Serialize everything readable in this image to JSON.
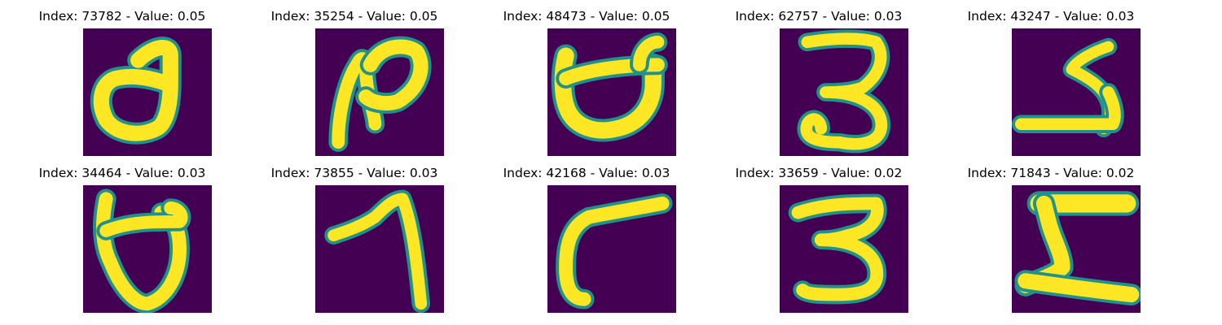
{
  "colormap": {
    "low": "#440154",
    "mid": "#21918c",
    "high": "#fde725"
  },
  "panels": [
    {
      "title": "Index: 73782 - Value: 0.05",
      "index": 73782,
      "value": 0.05,
      "description": "handwritten glyph resembling a rounded bowl with a raised right stroke"
    },
    {
      "title": "Index: 35254 - Value: 0.05",
      "index": 35254,
      "value": 0.05,
      "description": "handwritten glyph with a vertical left stroke and looping top-right hump"
    },
    {
      "title": "Index: 48473 - Value: 0.05",
      "index": 48473,
      "value": 0.05,
      "description": "handwritten glyph resembling a bowl with two upward prongs"
    },
    {
      "title": "Index: 62757 - Value: 0.03",
      "index": 62757,
      "value": 0.03,
      "description": "handwritten digit three"
    },
    {
      "title": "Index: 43247 - Value: 0.03",
      "index": 43247,
      "value": 0.03,
      "description": "handwritten glyph with a zigzag stroke ending in a long horizontal base"
    },
    {
      "title": "Index: 34464 - Value: 0.03",
      "index": 34464,
      "value": 0.03,
      "description": "handwritten glyph resembling a bowl with a vertical left stroke and a hook on the right"
    },
    {
      "title": "Index: 73855 - Value: 0.03",
      "index": 73855,
      "value": 0.03,
      "description": "handwritten digit seven"
    },
    {
      "title": "Index: 42168 - Value: 0.03",
      "index": 42168,
      "value": 0.03,
      "description": "handwritten glyph with a long top bar and a curved descending left stroke"
    },
    {
      "title": "Index: 33659 - Value: 0.02",
      "index": 33659,
      "value": 0.02,
      "description": "handwritten digit three"
    },
    {
      "title": "Index: 71843 - Value: 0.02",
      "index": 71843,
      "value": 0.02,
      "description": "handwritten glyph with a thick top bar, vertical stem and a wide base"
    }
  ]
}
